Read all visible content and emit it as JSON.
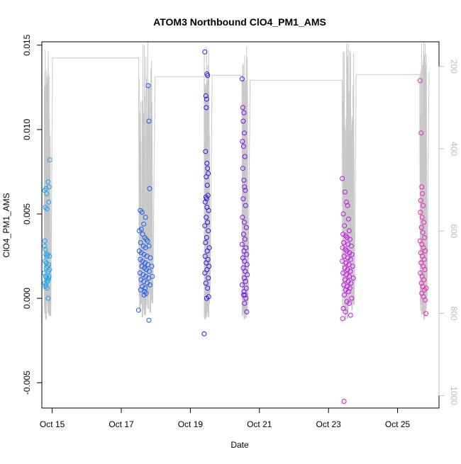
{
  "chart_data": {
    "type": "scatter",
    "title": "ATOM3 Northbound ClO4_PM1_AMS",
    "xlabel": "Date",
    "ylabel": "ClO4_PM1_AMS",
    "x_type": "date_days",
    "x_tick_labels": [
      "Oct 15",
      "Oct 17",
      "Oct 19",
      "Oct 21",
      "Oct 23",
      "Oct 25"
    ],
    "x_tick_values": [
      15,
      17,
      19,
      21,
      23,
      25
    ],
    "xlim": [
      14.7,
      26.2
    ],
    "ylim": [
      -0.0065,
      0.0152
    ],
    "y_tick_labels": [
      "-0.005",
      "0.000",
      "0.005",
      "0.010",
      "0.015"
    ],
    "y_tick_values": [
      -0.005,
      0.0,
      0.005,
      0.01,
      0.015
    ],
    "right_axis": {
      "description": "secondary axis drawn in light gray (flight altitude/pressure trace)",
      "tick_labels": [
        "200",
        "400",
        "600",
        "800",
        "1000"
      ],
      "tick_values": [
        200,
        400,
        600,
        800,
        1000
      ],
      "range": [
        140,
        1030
      ],
      "inverted": true,
      "color": "#bdbdbd"
    },
    "series": [
      {
        "color": "#1aa4ee",
        "points": [
          [
            14.78,
            0.0064
          ],
          [
            14.82,
            0.0065
          ],
          [
            14.8,
            0.0054
          ],
          [
            14.85,
            0.0053
          ],
          [
            14.9,
            0.0057
          ],
          [
            14.88,
            0.0069
          ],
          [
            14.93,
            0.0082
          ],
          [
            14.84,
            0.0062
          ],
          [
            14.91,
            0.0066
          ],
          [
            14.78,
            0.0031
          ],
          [
            14.8,
            0.0029
          ],
          [
            14.82,
            0.0026
          ],
          [
            14.85,
            0.0025
          ],
          [
            14.87,
            0.0026
          ],
          [
            14.9,
            0.002
          ],
          [
            14.92,
            0.0025
          ],
          [
            14.79,
            0.0022
          ],
          [
            14.83,
            0.0021
          ],
          [
            14.86,
            0.0019
          ],
          [
            14.89,
            0.0016
          ],
          [
            14.77,
            0.0015
          ],
          [
            14.81,
            0.0013
          ],
          [
            14.84,
            0.0012
          ],
          [
            14.88,
            0.0011
          ],
          [
            14.91,
            0.0013
          ],
          [
            14.78,
            0.0009
          ],
          [
            14.82,
            0.0008
          ],
          [
            14.86,
            0.001
          ],
          [
            14.9,
            0.0012
          ],
          [
            14.8,
            0.0007
          ],
          [
            14.85,
            0.0006
          ],
          [
            14.88,
            0.0
          ],
          [
            14.83,
            0.0018
          ],
          [
            14.92,
            0.0017
          ],
          [
            14.79,
            0.0034
          ]
        ]
      },
      {
        "color": "#1a5cf0",
        "points": [
          [
            17.5,
            -0.0007
          ],
          [
            17.8,
            -0.0013
          ],
          [
            17.78,
            0.0126
          ],
          [
            17.8,
            0.0105
          ],
          [
            17.82,
            0.0065
          ],
          [
            17.55,
            0.0052
          ],
          [
            17.6,
            0.0051
          ],
          [
            17.7,
            0.0048
          ],
          [
            17.65,
            0.0044
          ],
          [
            17.52,
            0.004
          ],
          [
            17.58,
            0.0041
          ],
          [
            17.62,
            0.0038
          ],
          [
            17.68,
            0.0036
          ],
          [
            17.72,
            0.0035
          ],
          [
            17.76,
            0.0034
          ],
          [
            17.56,
            0.0033
          ],
          [
            17.64,
            0.0031
          ],
          [
            17.7,
            0.003
          ],
          [
            17.8,
            0.0031
          ],
          [
            17.52,
            0.0028
          ],
          [
            17.58,
            0.0027
          ],
          [
            17.66,
            0.0026
          ],
          [
            17.74,
            0.0025
          ],
          [
            17.84,
            0.0024
          ],
          [
            17.55,
            0.0023
          ],
          [
            17.62,
            0.0022
          ],
          [
            17.69,
            0.0021
          ],
          [
            17.77,
            0.002
          ],
          [
            17.6,
            0.0019
          ],
          [
            17.67,
            0.0018
          ],
          [
            17.73,
            0.0017
          ],
          [
            17.81,
            0.0016
          ],
          [
            17.54,
            0.0015
          ],
          [
            17.63,
            0.0014
          ],
          [
            17.71,
            0.0013
          ],
          [
            17.79,
            0.0012
          ],
          [
            17.57,
            0.0011
          ],
          [
            17.65,
            0.001
          ],
          [
            17.75,
            0.0009
          ],
          [
            17.83,
            0.0008
          ],
          [
            17.61,
            0.0007
          ],
          [
            17.69,
            0.0006
          ],
          [
            17.56,
            0.0005
          ],
          [
            17.68,
            0.0004
          ],
          [
            17.72,
            0.0003
          ],
          [
            17.66,
            0.0002
          ],
          [
            17.9,
            0.0013
          ],
          [
            17.88,
            0.0019
          ]
        ]
      },
      {
        "color": "#3014e4",
        "points": [
          [
            19.4,
            -0.0021
          ],
          [
            19.42,
            0.0146
          ],
          [
            19.48,
            0.0133
          ],
          [
            19.5,
            0.0132
          ],
          [
            19.47,
            0.0118
          ],
          [
            19.46,
            0.0113
          ],
          [
            19.45,
            0.012
          ],
          [
            19.44,
            0.0087
          ],
          [
            19.48,
            0.008
          ],
          [
            19.5,
            0.0077
          ],
          [
            19.46,
            0.0072
          ],
          [
            19.52,
            0.0074
          ],
          [
            19.49,
            0.0067
          ],
          [
            19.45,
            0.006
          ],
          [
            19.47,
            0.0059
          ],
          [
            19.51,
            0.0061
          ],
          [
            19.43,
            0.0057
          ],
          [
            19.48,
            0.0054
          ],
          [
            19.53,
            0.0052
          ],
          [
            19.46,
            0.0048
          ],
          [
            19.5,
            0.0045
          ],
          [
            19.42,
            0.0043
          ],
          [
            19.52,
            0.004
          ],
          [
            19.47,
            0.0036
          ],
          [
            19.44,
            0.0033
          ],
          [
            19.55,
            0.003
          ],
          [
            19.49,
            0.0028
          ],
          [
            19.43,
            0.0025
          ],
          [
            19.51,
            0.0023
          ],
          [
            19.46,
            0.0021
          ],
          [
            19.54,
            0.0019
          ],
          [
            19.48,
            0.0017
          ],
          [
            19.42,
            0.0015
          ],
          [
            19.52,
            0.0012
          ],
          [
            19.45,
            0.0009
          ],
          [
            19.5,
            0.0006
          ],
          [
            19.47,
            0.0
          ],
          [
            19.53,
            0.0001
          ]
        ]
      },
      {
        "color": "#7a12ec",
        "points": [
          [
            20.5,
            0.013
          ],
          [
            20.52,
            0.0113
          ],
          [
            20.55,
            0.011
          ],
          [
            20.53,
            0.0105
          ],
          [
            20.56,
            0.0098
          ],
          [
            20.51,
            0.0093
          ],
          [
            20.54,
            0.009
          ],
          [
            20.58,
            0.0084
          ],
          [
            20.52,
            0.0077
          ],
          [
            20.55,
            0.007
          ],
          [
            20.57,
            0.0066
          ],
          [
            20.59,
            0.0064
          ],
          [
            20.53,
            0.0059
          ],
          [
            20.6,
            0.0055
          ],
          [
            20.51,
            0.0048
          ],
          [
            20.56,
            0.0045
          ],
          [
            20.62,
            0.0042
          ],
          [
            20.54,
            0.0038
          ],
          [
            20.58,
            0.0035
          ],
          [
            20.5,
            0.0032
          ],
          [
            20.61,
            0.003
          ],
          [
            20.55,
            0.0028
          ],
          [
            20.63,
            0.0026
          ],
          [
            20.52,
            0.0024
          ],
          [
            20.57,
            0.0022
          ],
          [
            20.64,
            0.002
          ],
          [
            20.53,
            0.0018
          ],
          [
            20.59,
            0.0016
          ],
          [
            20.65,
            0.0014
          ],
          [
            20.56,
            0.0012
          ],
          [
            20.6,
            0.001
          ],
          [
            20.5,
            0.0008
          ],
          [
            20.62,
            0.0006
          ],
          [
            20.55,
            0.0004
          ],
          [
            20.58,
            0.0002
          ],
          [
            20.61,
            0.0
          ],
          [
            20.57,
            -0.0003
          ],
          [
            20.63,
            -0.0008
          ],
          [
            20.54,
            0.0002
          ]
        ]
      },
      {
        "color": "#c313ea",
        "points": [
          [
            23.45,
            -0.0061
          ],
          [
            23.4,
            0.0071
          ],
          [
            23.48,
            0.0063
          ],
          [
            23.52,
            0.0057
          ],
          [
            23.55,
            0.0055
          ],
          [
            23.43,
            0.005
          ],
          [
            23.58,
            0.0047
          ],
          [
            23.46,
            0.0043
          ],
          [
            23.6,
            0.004
          ],
          [
            23.42,
            0.0038
          ],
          [
            23.5,
            0.0037
          ],
          [
            23.54,
            0.0036
          ],
          [
            23.62,
            0.0035
          ],
          [
            23.44,
            0.0033
          ],
          [
            23.57,
            0.0032
          ],
          [
            23.66,
            0.0031
          ],
          [
            23.41,
            0.003
          ],
          [
            23.49,
            0.0029
          ],
          [
            23.53,
            0.0028
          ],
          [
            23.61,
            0.0027
          ],
          [
            23.68,
            0.0026
          ],
          [
            23.45,
            0.0025
          ],
          [
            23.56,
            0.0024
          ],
          [
            23.64,
            0.0023
          ],
          [
            23.4,
            0.0022
          ],
          [
            23.51,
            0.0021
          ],
          [
            23.59,
            0.002
          ],
          [
            23.7,
            0.0019
          ],
          [
            23.47,
            0.0018
          ],
          [
            23.55,
            0.0017
          ],
          [
            23.63,
            0.0016
          ],
          [
            23.42,
            0.0015
          ],
          [
            23.52,
            0.0014
          ],
          [
            23.6,
            0.0013
          ],
          [
            23.72,
            0.0012
          ],
          [
            23.48,
            0.0011
          ],
          [
            23.57,
            0.001
          ],
          [
            23.65,
            0.0009
          ],
          [
            23.44,
            0.0008
          ],
          [
            23.54,
            0.0007
          ],
          [
            23.62,
            0.0006
          ],
          [
            23.5,
            0.0005
          ],
          [
            23.58,
            0.0004
          ],
          [
            23.46,
            0.0002
          ],
          [
            23.67,
            0.0
          ],
          [
            23.53,
            -0.0002
          ],
          [
            23.6,
            -0.0003
          ],
          [
            23.43,
            -0.0006
          ],
          [
            23.49,
            -0.0008
          ],
          [
            23.41,
            -0.0012
          ],
          [
            23.64,
            -0.001
          ]
        ]
      },
      {
        "color": "#f020c2",
        "points": [
          [
            25.65,
            0.0129
          ],
          [
            25.68,
            0.0098
          ],
          [
            25.7,
            0.0066
          ],
          [
            25.72,
            0.0062
          ],
          [
            25.67,
            0.0058
          ],
          [
            25.74,
            0.0055
          ],
          [
            25.66,
            0.0051
          ],
          [
            25.71,
            0.0048
          ],
          [
            25.76,
            0.0045
          ],
          [
            25.69,
            0.0042
          ],
          [
            25.73,
            0.0039
          ],
          [
            25.78,
            0.0036
          ],
          [
            25.65,
            0.0034
          ],
          [
            25.7,
            0.0032
          ],
          [
            25.75,
            0.003
          ],
          [
            25.8,
            0.0028
          ],
          [
            25.67,
            0.0027
          ],
          [
            25.72,
            0.0025
          ],
          [
            25.77,
            0.0023
          ],
          [
            25.68,
            0.0021
          ],
          [
            25.74,
            0.0019
          ],
          [
            25.79,
            0.0017
          ],
          [
            25.66,
            0.0015
          ],
          [
            25.71,
            0.0013
          ],
          [
            25.76,
            0.0011
          ],
          [
            25.69,
            0.0009
          ],
          [
            25.73,
            0.0007
          ],
          [
            25.78,
            0.0005
          ],
          [
            25.7,
            0.0003
          ],
          [
            25.75,
            0.0001
          ],
          [
            25.8,
            -0.0001
          ],
          [
            25.82,
            -0.0009
          ],
          [
            25.83,
            0.0006
          ]
        ]
      }
    ],
    "grid": false,
    "legend": "none"
  }
}
